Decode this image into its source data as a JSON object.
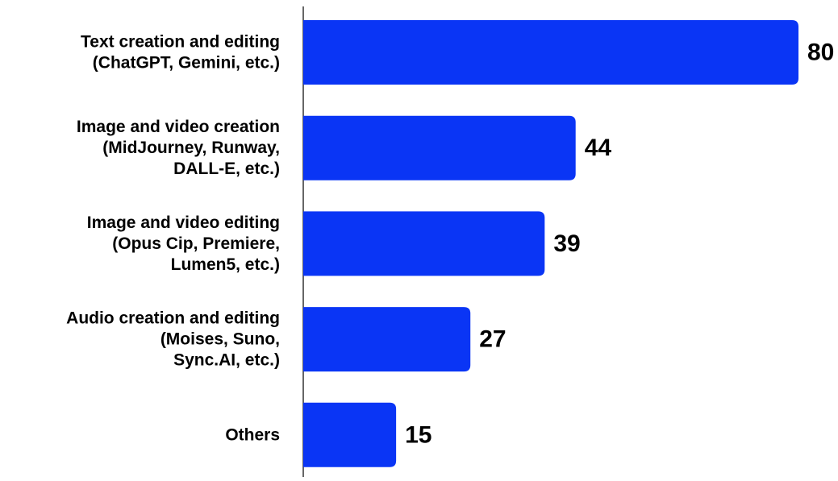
{
  "chart_data": {
    "type": "bar",
    "orientation": "horizontal",
    "categories": [
      [
        "Text creation and editing",
        "(ChatGPT, Gemini, etc.)"
      ],
      [
        "Image and video creation",
        "(MidJourney, Runway,",
        "DALL-E, etc.)"
      ],
      [
        "Image and video editing",
        "(Opus Cip, Premiere,",
        "Lumen5, etc.)"
      ],
      [
        "Audio creation and editing",
        "(Moises, Suno,",
        "Sync.AI, etc.)"
      ],
      [
        "Others"
      ]
    ],
    "values": [
      80,
      44,
      39,
      27,
      15
    ],
    "value_labels": [
      "80",
      "44",
      "39",
      "27",
      "15"
    ],
    "xlim": [
      0,
      80
    ],
    "grid": false,
    "legend": "none",
    "bar_color": "#0a35f5",
    "axis_color": "#000000"
  }
}
